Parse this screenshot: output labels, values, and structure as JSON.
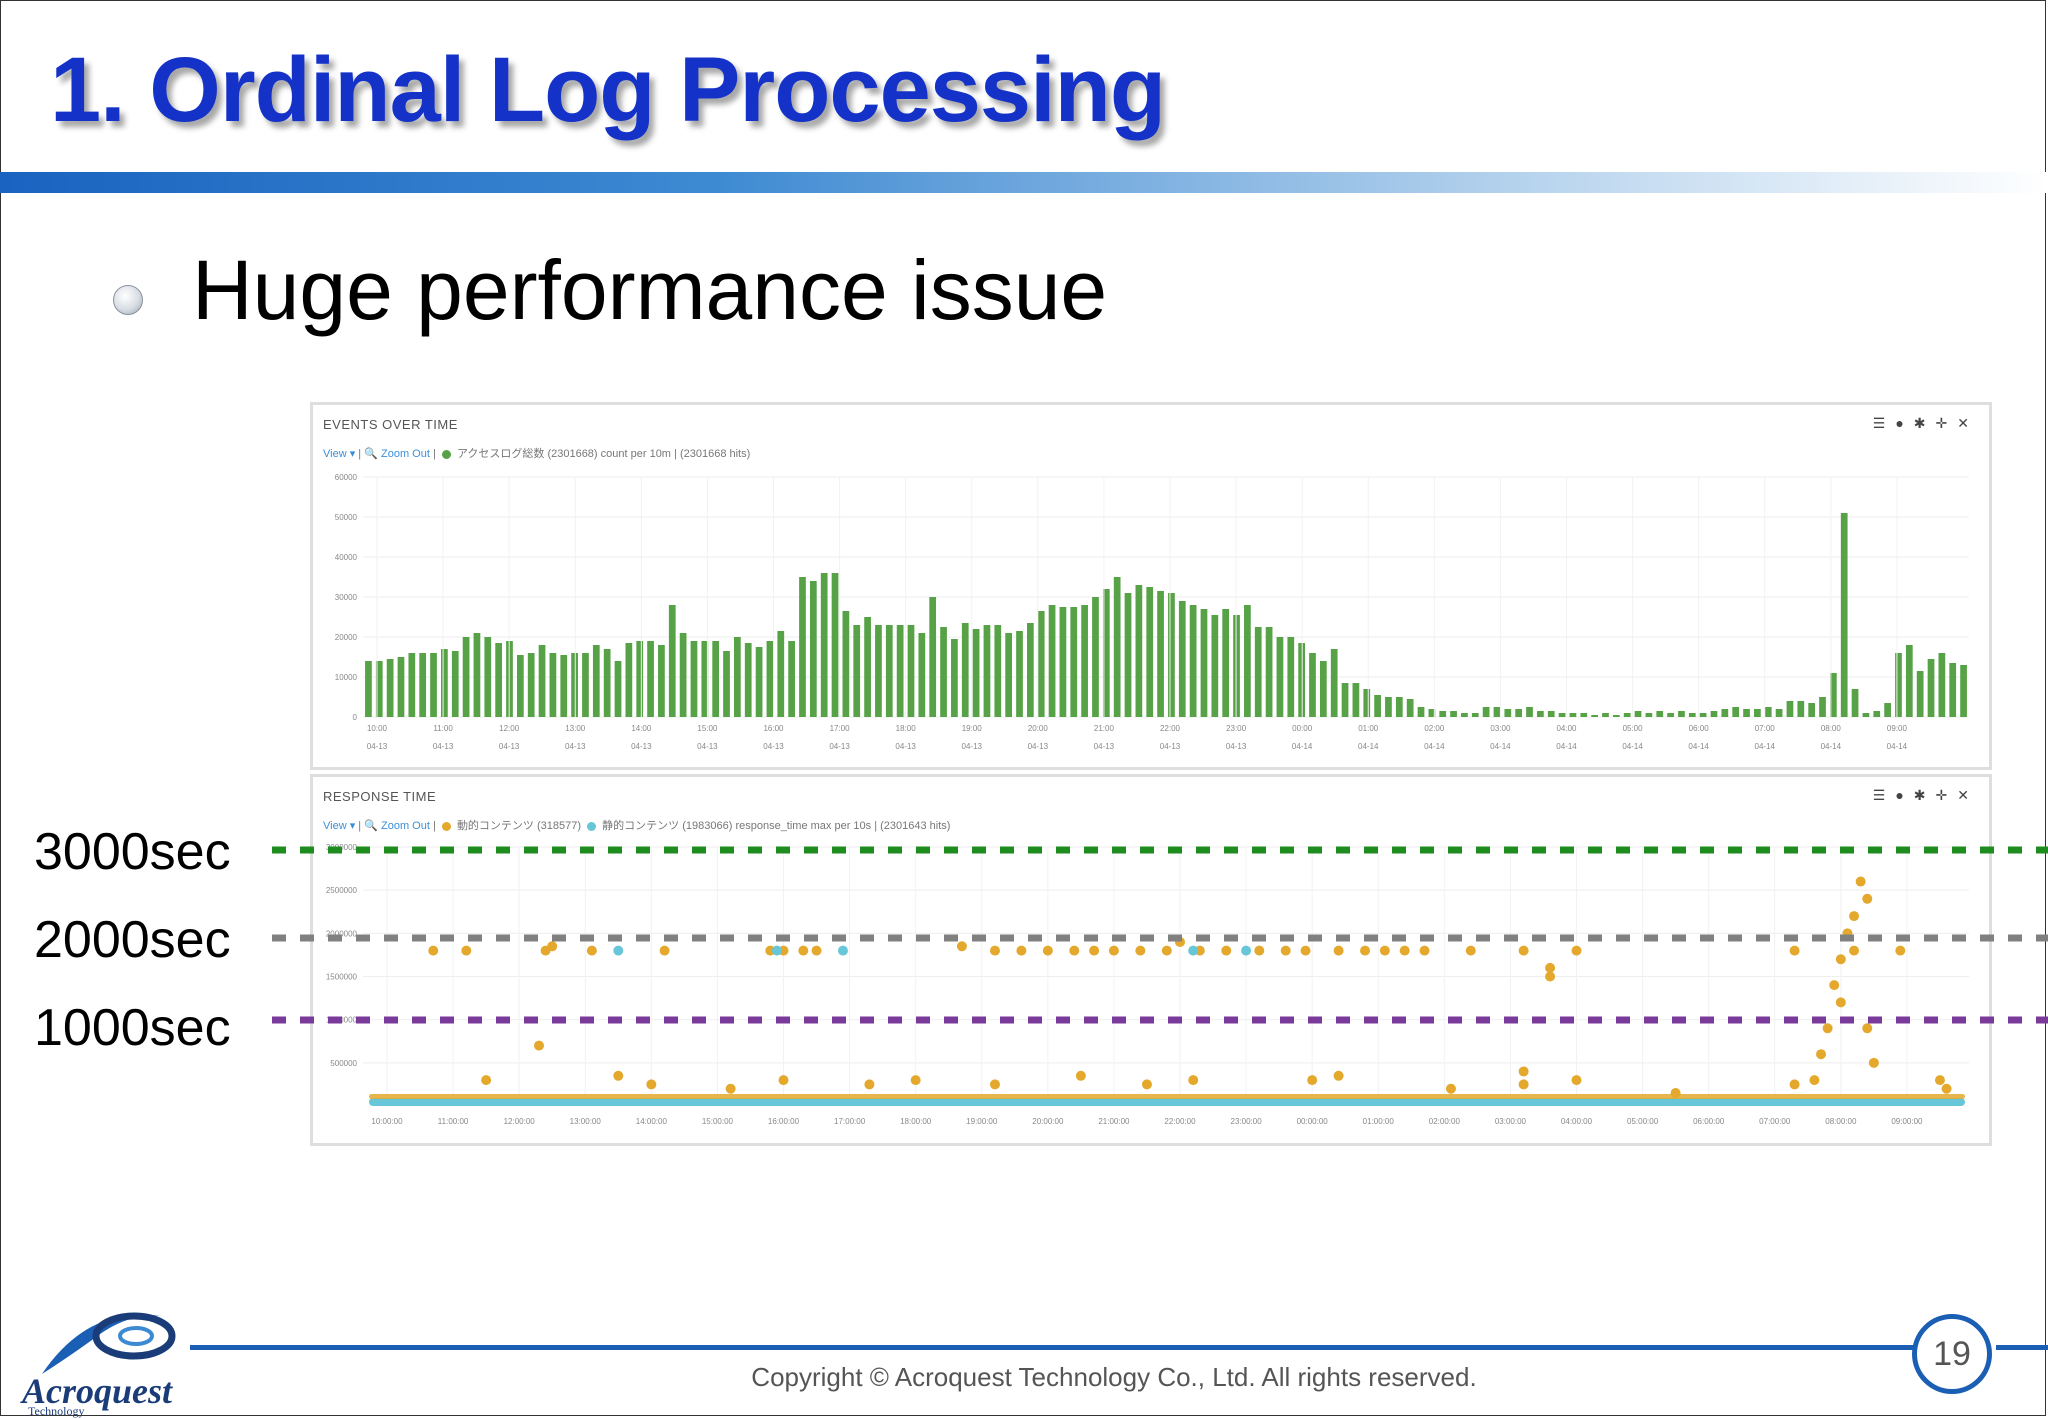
{
  "slide": {
    "title": "1. Ordinal Log Processing",
    "bullet": "Huge performance issue",
    "copyright": "Copyright © Acroquest Technology Co., Ltd. All rights reserved.",
    "page_number": "19",
    "logo_name": "Acroquest",
    "logo_sub": "Technology"
  },
  "events_panel": {
    "title": "EVENTS OVER TIME",
    "view_label": "View ▾",
    "zoom_label": "Zoom Out",
    "legend_label": "アクセスログ総数 (2301668)",
    "query_info": "count per 10m | (2301668 hits)",
    "legend_color": "#57a246",
    "icons": [
      "list-icon",
      "info-icon",
      "gear-icon",
      "move-icon",
      "close-icon"
    ]
  },
  "response_panel": {
    "title": "RESPONSE TIME",
    "view_label": "View ▾",
    "zoom_label": "Zoom Out",
    "legend1_label": "動的コンテンツ (318577)",
    "legend1_color": "#e3a82c",
    "legend2_label": "静的コンテンツ (1983066)",
    "legend2_color": "#67c6d8",
    "query_info": "response_time max per 10s | (2301643 hits)",
    "icons": [
      "list-icon",
      "info-icon",
      "gear-icon",
      "move-icon",
      "close-icon"
    ]
  },
  "reference_lines": [
    {
      "label": "3000sec",
      "color": "#1e8c1e"
    },
    {
      "label": "2000sec",
      "color": "#808080"
    },
    {
      "label": "1000sec",
      "color": "#7a3a9a"
    }
  ],
  "chart_data": [
    {
      "type": "bar",
      "title": "EVENTS OVER TIME",
      "ylim": [
        0,
        60000
      ],
      "y_ticks": [
        "0",
        "10000",
        "20000",
        "30000",
        "40000",
        "50000",
        "60000"
      ],
      "x_tick_labels": [
        "10:00",
        "11:00",
        "12:00",
        "13:00",
        "14:00",
        "15:00",
        "16:00",
        "17:00",
        "18:00",
        "19:00",
        "20:00",
        "21:00",
        "22:00",
        "23:00",
        "00:00",
        "01:00",
        "02:00",
        "03:00",
        "04:00",
        "05:00",
        "06:00",
        "07:00",
        "08:00",
        "09:00"
      ],
      "x_tick_dates": [
        "04-13",
        "04-13",
        "04-13",
        "04-13",
        "04-13",
        "04-13",
        "04-13",
        "04-13",
        "04-13",
        "04-13",
        "04-13",
        "04-13",
        "04-13",
        "04-13",
        "04-14",
        "04-14",
        "04-14",
        "04-14",
        "04-14",
        "04-14",
        "04-14",
        "04-14",
        "04-14",
        "04-14"
      ],
      "interval": "10m",
      "color": "#57a246",
      "values": [
        14000,
        14000,
        14500,
        15000,
        16000,
        16000,
        16000,
        17000,
        16500,
        20000,
        21000,
        20000,
        18500,
        19000,
        15500,
        16000,
        18000,
        16000,
        15500,
        16000,
        16000,
        18000,
        17000,
        14000,
        18500,
        19000,
        19000,
        18000,
        28000,
        21000,
        19000,
        19000,
        19000,
        16500,
        20000,
        18500,
        17500,
        19000,
        21500,
        19000,
        35000,
        34000,
        36000,
        36000,
        26500,
        23000,
        25000,
        23000,
        23000,
        23000,
        23000,
        21000,
        30000,
        22500,
        19500,
        23500,
        22000,
        23000,
        23000,
        21000,
        21500,
        23500,
        26500,
        28000,
        27500,
        27500,
        28000,
        30000,
        32000,
        35000,
        31000,
        33000,
        32500,
        31500,
        31000,
        29000,
        28000,
        27000,
        25500,
        27000,
        25500,
        28000,
        22500,
        22500,
        20000,
        20000,
        18500,
        16000,
        14000,
        17000,
        8500,
        8500,
        7000,
        5500,
        5000,
        5000,
        4500,
        2500,
        2000,
        1500,
        1500,
        1000,
        1000,
        2500,
        2500,
        2000,
        2000,
        2500,
        1500,
        1500,
        1000,
        1000,
        1000,
        500,
        1000,
        500,
        1000,
        1500,
        1000,
        1500,
        1000,
        1500,
        1000,
        1000,
        1500,
        2000,
        2500,
        2000,
        2000,
        2500,
        2000,
        4000,
        4000,
        3500,
        5000,
        11000,
        51000,
        7000,
        1000,
        1500,
        3500,
        16000,
        18000,
        11500,
        14500,
        16000,
        13500,
        13000
      ]
    },
    {
      "type": "scatter",
      "title": "RESPONSE TIME",
      "ylim": [
        0,
        3000000
      ],
      "y_ticks": [
        "500000",
        "1000000",
        "1500000",
        "2000000",
        "2500000",
        "3000000"
      ],
      "x_tick_labels": [
        "10:00:00",
        "11:00:00",
        "12:00:00",
        "13:00:00",
        "14:00:00",
        "15:00:00",
        "16:00:00",
        "17:00:00",
        "18:00:00",
        "19:00:00",
        "20:00:00",
        "21:00:00",
        "22:00:00",
        "23:00:00",
        "00:00:00",
        "01:00:00",
        "02:00:00",
        "03:00:00",
        "04:00:00",
        "05:00:00",
        "06:00:00",
        "07:00:00",
        "08:00:00",
        "09:00:00"
      ],
      "series": [
        {
          "name": "動的コンテンツ",
          "color": "#e3a82c",
          "points": [
            [
              0.7,
              1800000
            ],
            [
              1.2,
              1800000
            ],
            [
              2.4,
              1800000
            ],
            [
              2.5,
              1850000
            ],
            [
              3.1,
              1800000
            ],
            [
              4.2,
              1800000
            ],
            [
              5.8,
              1800000
            ],
            [
              6.0,
              1800000
            ],
            [
              6.3,
              1800000
            ],
            [
              6.5,
              1800000
            ],
            [
              8.7,
              1850000
            ],
            [
              9.2,
              1800000
            ],
            [
              9.6,
              1800000
            ],
            [
              10.0,
              1800000
            ],
            [
              10.4,
              1800000
            ],
            [
              10.7,
              1800000
            ],
            [
              11.0,
              1800000
            ],
            [
              11.4,
              1800000
            ],
            [
              11.8,
              1800000
            ],
            [
              12.0,
              1900000
            ],
            [
              12.3,
              1800000
            ],
            [
              12.7,
              1800000
            ],
            [
              13.2,
              1800000
            ],
            [
              13.6,
              1800000
            ],
            [
              13.9,
              1800000
            ],
            [
              14.4,
              1800000
            ],
            [
              14.8,
              1800000
            ],
            [
              15.1,
              1800000
            ],
            [
              15.4,
              1800000
            ],
            [
              15.7,
              1800000
            ],
            [
              16.4,
              1800000
            ],
            [
              17.2,
              1800000
            ],
            [
              17.6,
              1500000
            ],
            [
              17.6,
              1600000
            ],
            [
              18.0,
              1800000
            ],
            [
              21.3,
              1800000
            ],
            [
              22.2,
              1800000
            ],
            [
              1.5,
              300000
            ],
            [
              2.3,
              700000
            ],
            [
              3.5,
              350000
            ],
            [
              4.0,
              250000
            ],
            [
              5.2,
              200000
            ],
            [
              6.0,
              300000
            ],
            [
              7.3,
              250000
            ],
            [
              8.0,
              300000
            ],
            [
              9.2,
              250000
            ],
            [
              10.5,
              350000
            ],
            [
              11.5,
              250000
            ],
            [
              12.2,
              300000
            ],
            [
              14.0,
              300000
            ],
            [
              14.4,
              350000
            ],
            [
              16.1,
              200000
            ],
            [
              17.2,
              400000
            ],
            [
              17.2,
              250000
            ],
            [
              18.0,
              300000
            ],
            [
              19.5,
              150000
            ],
            [
              21.3,
              250000
            ],
            [
              22.3,
              2600000
            ],
            [
              22.4,
              2400000
            ],
            [
              22.2,
              2200000
            ],
            [
              22.1,
              2000000
            ],
            [
              22.0,
              1700000
            ],
            [
              21.9,
              1400000
            ],
            [
              22.0,
              1200000
            ],
            [
              21.8,
              900000
            ],
            [
              21.7,
              600000
            ],
            [
              21.6,
              300000
            ],
            [
              22.4,
              900000
            ],
            [
              22.5,
              500000
            ],
            [
              22.9,
              1800000
            ],
            [
              23.5,
              300000
            ],
            [
              23.6,
              200000
            ]
          ]
        },
        {
          "name": "静的コンテンツ",
          "color": "#67c6d8",
          "points": [
            [
              3.5,
              1800000
            ],
            [
              5.9,
              1800000
            ],
            [
              6.9,
              1800000
            ],
            [
              12.2,
              1800000
            ],
            [
              13.0,
              1800000
            ]
          ]
        }
      ]
    }
  ]
}
